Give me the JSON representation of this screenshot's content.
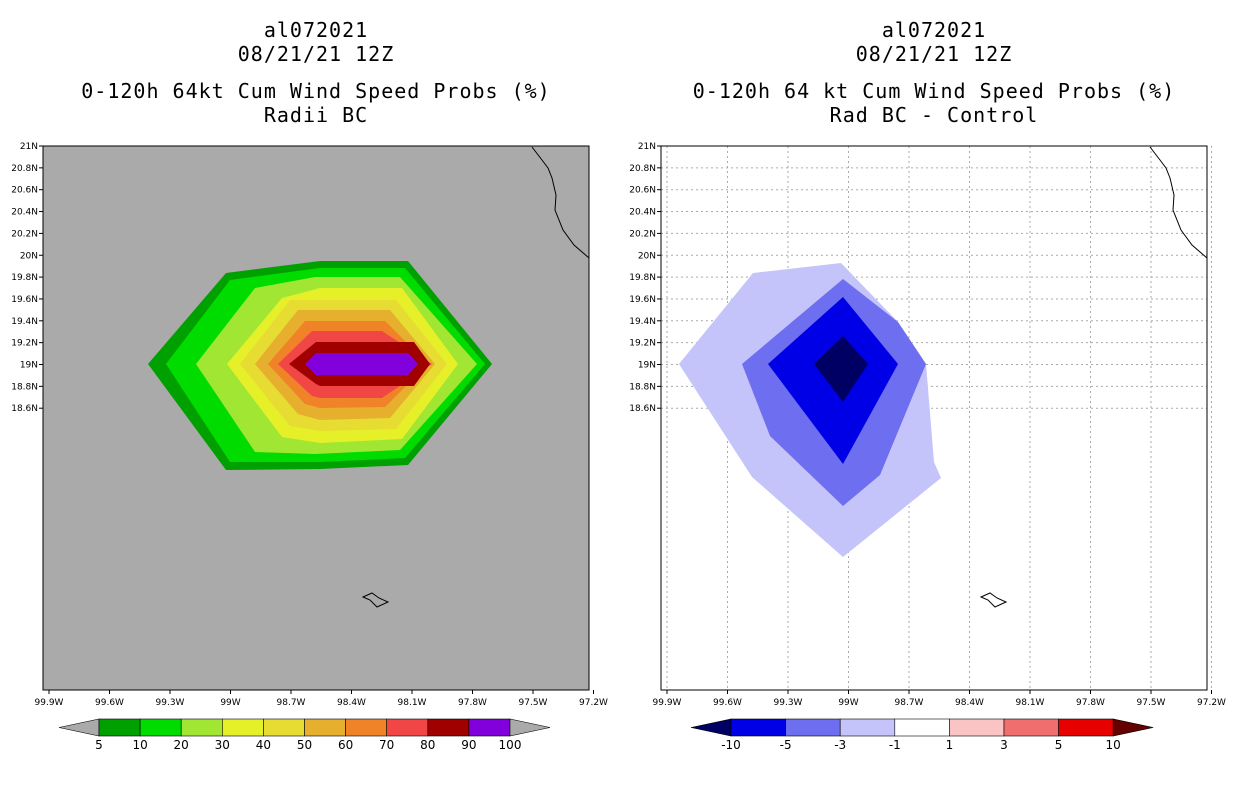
{
  "left_panel": {
    "title_line1": "al072021",
    "title_line2": "08/21/21 12Z",
    "title_line3": "0-120h 64kt Cum Wind Speed Probs (%)",
    "title_line4": "Radii BC",
    "y_ticks": [
      "21N",
      "20.8N",
      "20.6N",
      "20.4N",
      "20.2N",
      "20N",
      "19.8N",
      "19.6N",
      "19.4N",
      "19.2N",
      "19N",
      "18.8N",
      "18.6N"
    ],
    "x_ticks": [
      "99.9W",
      "99.6W",
      "99.3W",
      "99W",
      "98.7W",
      "98.4W",
      "98.1W",
      "97.8W",
      "97.5W",
      "97.2W"
    ],
    "colorbar_labels": [
      "5",
      "10",
      "20",
      "30",
      "40",
      "50",
      "60",
      "70",
      "80",
      "90",
      "100"
    ],
    "colors": {
      "background": "#aaaaaa",
      "levels": [
        "#00a000",
        "#00dc00",
        "#a0e632",
        "#e6f028",
        "#e6dc32",
        "#e6af2d",
        "#f08228",
        "#f04646",
        "#a00000",
        "#8200dc"
      ]
    }
  },
  "right_panel": {
    "title_line1": "al072021",
    "title_line2": "08/21/21 12Z",
    "title_line3": "0-120h 64 kt Cum Wind Speed Probs (%)",
    "title_line4": "Rad BC - Control",
    "y_ticks": [
      "21N",
      "20.8N",
      "20.6N",
      "20.4N",
      "20.2N",
      "20N",
      "19.8N",
      "19.6N",
      "19.4N",
      "19.2N",
      "19N",
      "18.8N",
      "18.6N"
    ],
    "x_ticks": [
      "99.9W",
      "99.6W",
      "99.3W",
      "99W",
      "98.7W",
      "98.4W",
      "98.1W",
      "97.8W",
      "97.5W",
      "97.2W"
    ],
    "colorbar_labels": [
      "-10",
      "-5",
      "-3",
      "-1",
      "1",
      "3",
      "5",
      "10"
    ],
    "colors": {
      "background": "#ffffff",
      "levels": [
        "#000064",
        "#0000e6",
        "#6e6ef0",
        "#c4c4fa",
        "#ffffff",
        "#fac4c4",
        "#f06e6e",
        "#e60000",
        "#640000"
      ]
    }
  }
}
